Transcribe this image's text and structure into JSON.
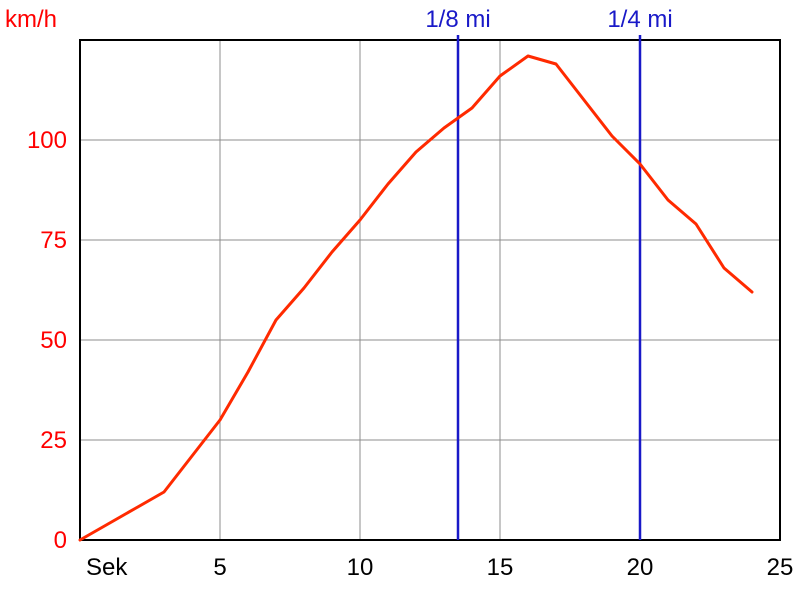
{
  "chart_data": {
    "type": "line",
    "x": [
      0,
      1,
      2,
      3,
      4,
      5,
      6,
      7,
      8,
      9,
      10,
      11,
      12,
      13,
      14,
      15,
      16,
      17,
      18,
      19,
      20,
      21,
      22,
      23,
      24
    ],
    "series": [
      {
        "values": [
          0,
          4,
          8,
          12,
          21,
          30,
          42,
          55,
          63,
          72,
          80,
          89,
          97,
          103,
          108,
          116,
          121,
          119,
          110,
          101,
          94,
          85,
          79,
          68,
          62
        ],
        "color": "#ff2a00"
      }
    ],
    "ylabel": "km/h",
    "xlabel": "Sek",
    "xlim": [
      0,
      25
    ],
    "ylim": [
      0,
      125
    ],
    "x_ticks": [
      5,
      10,
      15,
      20,
      25
    ],
    "y_ticks": [
      0,
      25,
      50,
      75,
      100
    ],
    "grid": true,
    "vertical_markers": [
      {
        "label": "1/8 mi",
        "x": 13.5
      },
      {
        "label": "1/4 mi",
        "x": 20
      }
    ],
    "colors": {
      "y_axis_text": "#ff0000",
      "x_axis_text": "#000000",
      "markers": "#1919c8",
      "grid": "#8c8c8c"
    }
  }
}
